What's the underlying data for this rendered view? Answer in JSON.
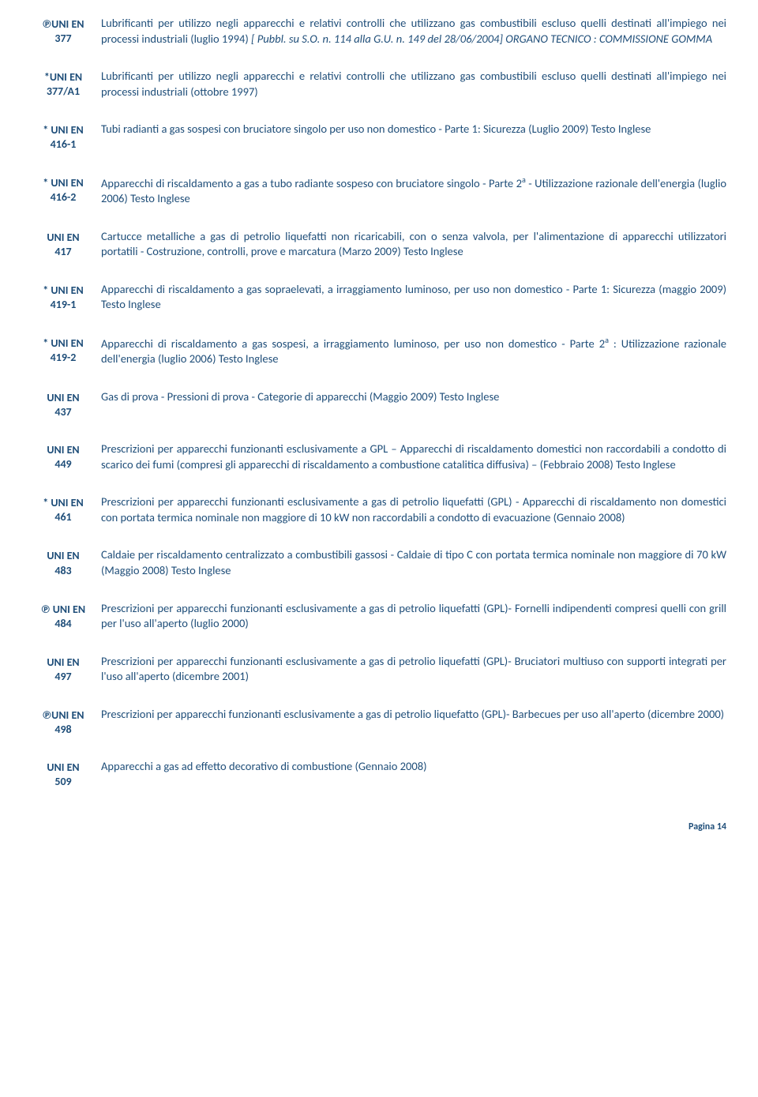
{
  "entries": [
    {
      "code_line1": "℗UNI EN",
      "code_line2": "377",
      "desc_parts": [
        {
          "text": "Lubrificanti per utilizzo negli apparecchi e relativi controlli che utilizzano gas combustibili escluso quelli destinati all'impiego nei processi industriali (luglio 1994)  "
        },
        {
          "text": "[ Pubbl. su S.O. n. 114 alla G.U. n. 149 del 28/06/2004] ORGANO TECNICO : COMMISSIONE GOMMA",
          "italic": true
        }
      ]
    },
    {
      "code_line1": "*UNI EN",
      "code_line2": "377/A1",
      "desc_parts": [
        {
          "text": "Lubrificanti per utilizzo negli apparecchi e relativi controlli che utilizzano gas combustibili escluso quelli destinati all'impiego nei processi industriali (ottobre 1997)"
        }
      ]
    },
    {
      "code_line1": "* UNI EN",
      "code_line2": "416-1",
      "desc_parts": [
        {
          "text": "Tubi radianti a gas sospesi con bruciatore singolo per uso non domestico - Parte 1: Sicurezza (Luglio 2009) Testo Inglese"
        }
      ]
    },
    {
      "code_line1": "* UNI EN",
      "code_line2": "416-2",
      "desc_parts": [
        {
          "text": "Apparecchi di riscaldamento a gas a tubo radiante sospeso con bruciatore singolo - Parte 2"
        },
        {
          "text": "a",
          "sup": true
        },
        {
          "text": " - Utilizzazione razionale dell'energia (luglio 2006) Testo Inglese"
        }
      ]
    },
    {
      "code_line1": "UNI  EN",
      "code_line2": "417",
      "desc_parts": [
        {
          "text": "Cartucce metalliche a gas di petrolio liquefatti non ricaricabili, con o senza valvola, per l'alimentazione di apparecchi utilizzatori portatili - Costruzione, controlli, prove e marcatura (Marzo 2009) Testo Inglese"
        }
      ]
    },
    {
      "code_line1": "* UNI EN",
      "code_line2": "419-1",
      "desc_parts": [
        {
          "text": "Apparecchi di riscaldamento a gas sopraelevati, a irraggiamento luminoso, per uso non domestico - Parte 1: Sicurezza  (maggio 2009) Testo Inglese"
        }
      ]
    },
    {
      "code_line1": "* UNI EN",
      "code_line2": "419-2",
      "desc_parts": [
        {
          "text": " Apparecchi di riscaldamento a gas sospesi, a irraggiamento luminoso, per uso non domestico - Parte 2"
        },
        {
          "text": "a",
          "sup": true
        },
        {
          "text": " : Utilizzazione razionale dell'energia (luglio 2006) Testo Inglese"
        }
      ]
    },
    {
      "code_line1": "UNI EN",
      "code_line2": "437",
      "desc_parts": [
        {
          "text": "Gas di prova - Pressioni di prova - Categorie di apparecchi (Maggio 2009) Testo Inglese"
        }
      ]
    },
    {
      "code_line1": "UNI EN",
      "code_line2": "449",
      "desc_parts": [
        {
          "text": "Prescrizioni per apparecchi funzionanti esclusivamente a GPL – Apparecchi di riscaldamento domestici non raccordabili a condotto di scarico dei fumi (compresi gli apparecchi di riscaldamento a combustione catalitica diffusiva) – (Febbraio 2008) Testo Inglese"
        }
      ]
    },
    {
      "code_line1": "* UNI EN",
      "code_line2": "461",
      "desc_parts": [
        {
          "text": "Prescrizioni per apparecchi funzionanti esclusivamente a gas di petrolio liquefatti (GPL) - Apparecchi di riscaldamento non domestici con portata termica nominale non maggiore di 10 kW non raccordabili a condotto di evacuazione (Gennaio 2008)"
        }
      ]
    },
    {
      "code_line1": "UNI EN",
      "code_line2": "483",
      "desc_parts": [
        {
          "text": "Caldaie per riscaldamento centralizzato a combustibili gassosi - Caldaie di tipo C con portata termica nominale non maggiore di 70 kW (Maggio 2008)  Testo Inglese"
        }
      ]
    },
    {
      "code_line1": "℗ UNI EN",
      "code_line2": "484",
      "desc_parts": [
        {
          "text": "Prescrizioni per apparecchi funzionanti esclusivamente a gas di petrolio liquefatti (GPL)- Fornelli indipendenti compresi quelli con grill per l'uso all'aperto (luglio 2000)"
        }
      ]
    },
    {
      "code_line1": "UNI EN",
      "code_line2": "497",
      "desc_parts": [
        {
          "text": "Prescrizioni per apparecchi funzionanti esclusivamente a gas di petrolio liquefatti (GPL)- Bruciatori multiuso con supporti integrati per l'uso all'aperto (dicembre 2001)"
        }
      ]
    },
    {
      "code_line1": "℗UNI EN",
      "code_line2": "498",
      "desc_parts": [
        {
          "text": "Prescrizioni per apparecchi funzionanti esclusivamente a gas di petrolio liquefatto (GPL)- Barbecues per uso all'aperto (dicembre 2000)"
        }
      ]
    },
    {
      "code_line1": "UNI EN",
      "code_line2": "509",
      "desc_parts": [
        {
          "text": "Apparecchi a gas ad effetto decorativo di combustione (Gennaio 2008)"
        }
      ]
    }
  ],
  "footer": "Pagina 14"
}
